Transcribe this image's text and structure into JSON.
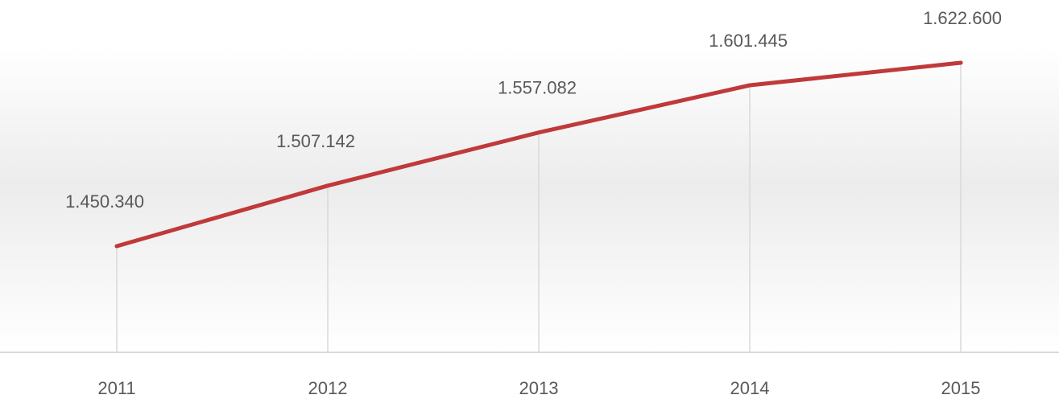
{
  "chart_data": {
    "type": "line",
    "categories": [
      "2011",
      "2012",
      "2013",
      "2014",
      "2015"
    ],
    "series": [
      {
        "values": [
          1450340,
          1507142,
          1557082,
          1601445,
          1622600
        ],
        "labels": [
          "1.450.340",
          "1.507.142",
          "1.557.082",
          "1.601.445",
          "1.622.600"
        ]
      }
    ],
    "title": "",
    "xlabel": "",
    "ylabel": "",
    "grid": false,
    "drop_lines": true,
    "legend": "none"
  },
  "colors": {
    "line": "#c0393b",
    "drop_line": "#d9d9d9",
    "axis": "#d9d9d9",
    "text": "#595959",
    "background_gradient_top": "#ffffff",
    "background_gradient_mid": "#ececec",
    "background_gradient_bottom": "#ffffff"
  }
}
